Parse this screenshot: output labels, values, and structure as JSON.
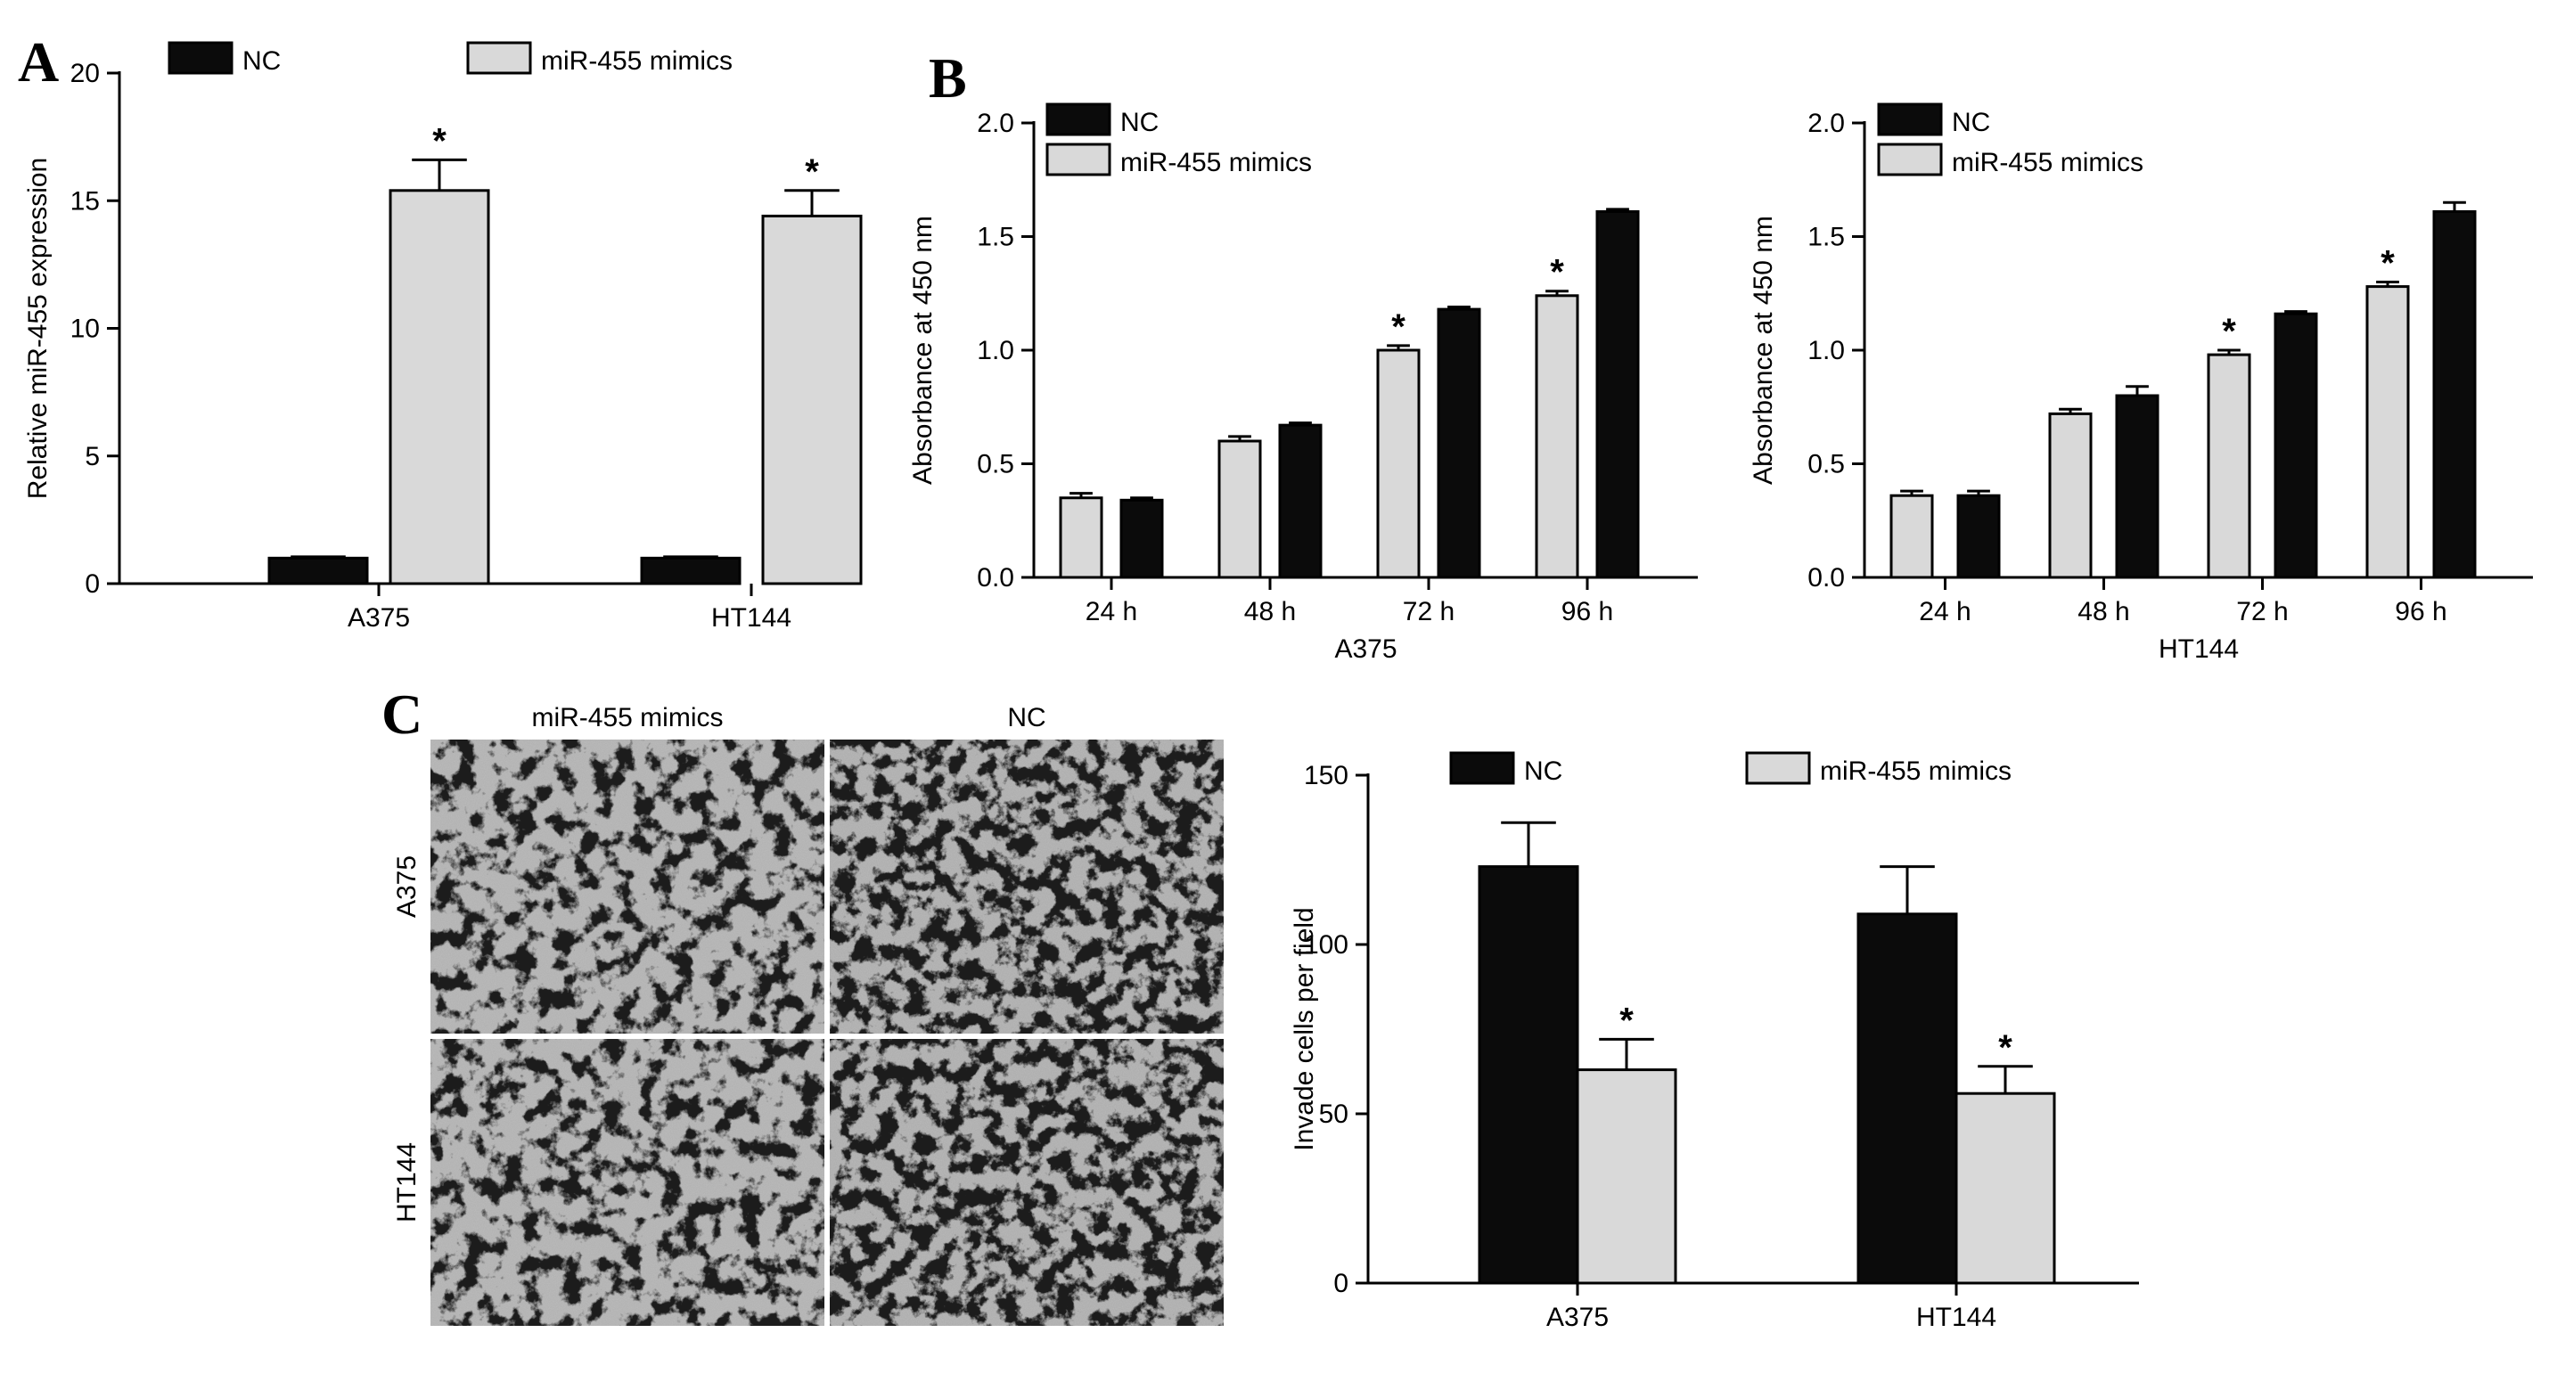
{
  "figure": {
    "panel_labels": {
      "a": "A",
      "b": "B",
      "c": "C"
    },
    "colors": {
      "NC": "#0b0b0b",
      "mimics": "#d9d9d9",
      "axis": "#000000",
      "micro_bg": "#a9a9a9"
    }
  },
  "chart_data": [
    {
      "id": "A",
      "type": "bar",
      "categories": [
        "A375",
        "HT144"
      ],
      "series": [
        {
          "name": "NC",
          "values": [
            1.0,
            1.0
          ],
          "errors": [
            0.05,
            0.05
          ],
          "color": "#0b0b0b"
        },
        {
          "name": "miR-455 mimics",
          "values": [
            15.4,
            14.4
          ],
          "errors": [
            1.2,
            1.0
          ],
          "color": "#d9d9d9"
        }
      ],
      "significance": [
        {
          "series": "miR-455 mimics",
          "categories": [
            "A375",
            "HT144"
          ],
          "label": "*"
        }
      ],
      "ylabel": "Relative miR-455 expression",
      "xlabel": "",
      "ylim": [
        0,
        20
      ],
      "yticks": [
        0,
        5,
        10,
        15,
        20
      ],
      "legend": "top"
    },
    {
      "id": "B-left",
      "type": "bar",
      "categories": [
        "24 h",
        "48 h",
        "72 h",
        "96 h"
      ],
      "series": [
        {
          "name": "miR-455 mimics",
          "values": [
            0.35,
            0.6,
            1.0,
            1.24
          ],
          "errors": [
            0.02,
            0.02,
            0.02,
            0.02
          ],
          "color": "#d9d9d9"
        },
        {
          "name": "NC",
          "values": [
            0.34,
            0.67,
            1.18,
            1.61
          ],
          "errors": [
            0.01,
            0.01,
            0.01,
            0.01
          ],
          "color": "#0b0b0b"
        }
      ],
      "significance": [
        {
          "series": "miR-455 mimics",
          "categories": [
            "72 h",
            "96 h"
          ],
          "label": "*"
        }
      ],
      "legend_entries": [
        "NC",
        "miR-455 mimics"
      ],
      "ylabel": "Absorbance at 450 nm",
      "xlabel": "A375",
      "ylim": [
        0,
        2.0
      ],
      "yticks": [
        "0.0",
        "0.5",
        "1.0",
        "1.5",
        "2.0"
      ],
      "legend": "top-left"
    },
    {
      "id": "B-right",
      "type": "bar",
      "categories": [
        "24 h",
        "48 h",
        "72 h",
        "96 h"
      ],
      "series": [
        {
          "name": "miR-455 mimics",
          "values": [
            0.36,
            0.72,
            0.98,
            1.28
          ],
          "errors": [
            0.02,
            0.02,
            0.02,
            0.02
          ],
          "color": "#d9d9d9"
        },
        {
          "name": "NC",
          "values": [
            0.36,
            0.8,
            1.16,
            1.61
          ],
          "errors": [
            0.02,
            0.04,
            0.01,
            0.04
          ],
          "color": "#0b0b0b"
        }
      ],
      "significance": [
        {
          "series": "miR-455 mimics",
          "categories": [
            "72 h",
            "96 h"
          ],
          "label": "*"
        }
      ],
      "legend_entries": [
        "NC",
        "miR-455 mimics"
      ],
      "ylabel": "Absorbance at 450 nm",
      "xlabel": "HT144",
      "ylim": [
        0,
        2.0
      ],
      "yticks": [
        "0.0",
        "0.5",
        "1.0",
        "1.5",
        "2.0"
      ],
      "legend": "top-left"
    },
    {
      "id": "C-chart",
      "type": "bar",
      "categories": [
        "A375",
        "HT144"
      ],
      "series": [
        {
          "name": "NC",
          "values": [
            123,
            109
          ],
          "errors": [
            13,
            14
          ],
          "color": "#0b0b0b"
        },
        {
          "name": "miR-455 mimics",
          "values": [
            63,
            56
          ],
          "errors": [
            9,
            8
          ],
          "color": "#d9d9d9"
        }
      ],
      "significance": [
        {
          "series": "miR-455 mimics",
          "categories": [
            "A375",
            "HT144"
          ],
          "label": "*"
        }
      ],
      "ylabel": "Invade cells per field",
      "xlabel": "",
      "ylim": [
        0,
        150
      ],
      "yticks": [
        0,
        50,
        100,
        150
      ],
      "legend": "top"
    }
  ],
  "micrographs": {
    "column_labels": [
      "miR-455 mimics",
      "NC"
    ],
    "row_labels": [
      "A375",
      "HT144"
    ]
  }
}
